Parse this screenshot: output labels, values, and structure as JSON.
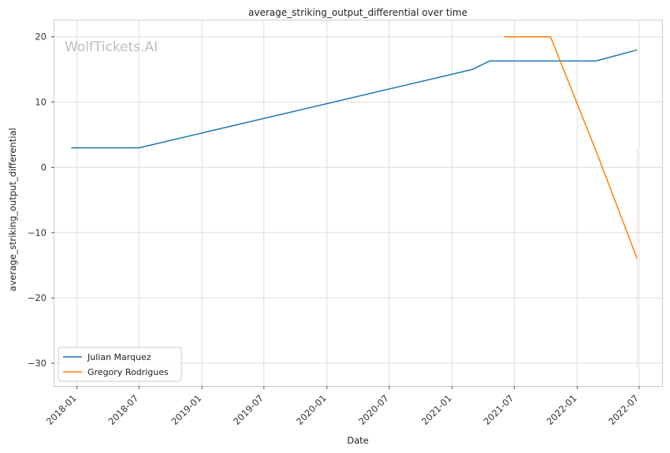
{
  "chart_data": {
    "type": "line",
    "title": "average_striking_output_differential over time",
    "xlabel": "Date",
    "ylabel": "average_striking_output_differential",
    "watermark": "WolfTickets.AI",
    "x_ticks": [
      "2018-01",
      "2018-07",
      "2019-01",
      "2019-07",
      "2020-01",
      "2020-07",
      "2021-01",
      "2021-07",
      "2022-01",
      "2022-07"
    ],
    "y_ticks": [
      20,
      10,
      0,
      -10,
      -20,
      -30
    ],
    "y_tick_labels": [
      "20",
      "10",
      "0",
      "−10",
      "−20",
      "−30"
    ],
    "xlim": [
      "2017-10-27",
      "2022-09-06"
    ],
    "ylim": [
      -33.5,
      22.5
    ],
    "grid": true,
    "legend_position": "lower-left",
    "series": [
      {
        "name": "Julian Marquez",
        "color": "#1f77b4",
        "points": [
          {
            "x": "2017-12-15",
            "y": 3.0
          },
          {
            "x": "2018-07-01",
            "y": 3.0
          },
          {
            "x": "2021-03-01",
            "y": 15.0
          },
          {
            "x": "2021-04-20",
            "y": 16.3
          },
          {
            "x": "2022-02-25",
            "y": 16.3
          },
          {
            "x": "2022-06-25",
            "y": 18.0
          }
        ]
      },
      {
        "name": "Gregory Rodrigues",
        "color": "#ff7f0e",
        "points": [
          {
            "x": "2021-06-01",
            "y": 20.0
          },
          {
            "x": "2021-10-15",
            "y": 20.0
          },
          {
            "x": "2022-02-25",
            "y": 2.5
          },
          {
            "x": "2022-06-25",
            "y": -14.0
          }
        ]
      }
    ],
    "error_band": {
      "color": "#ff7f0e",
      "x": "2022-06-25",
      "y_low": -31.0,
      "y_high": 3.0
    }
  }
}
